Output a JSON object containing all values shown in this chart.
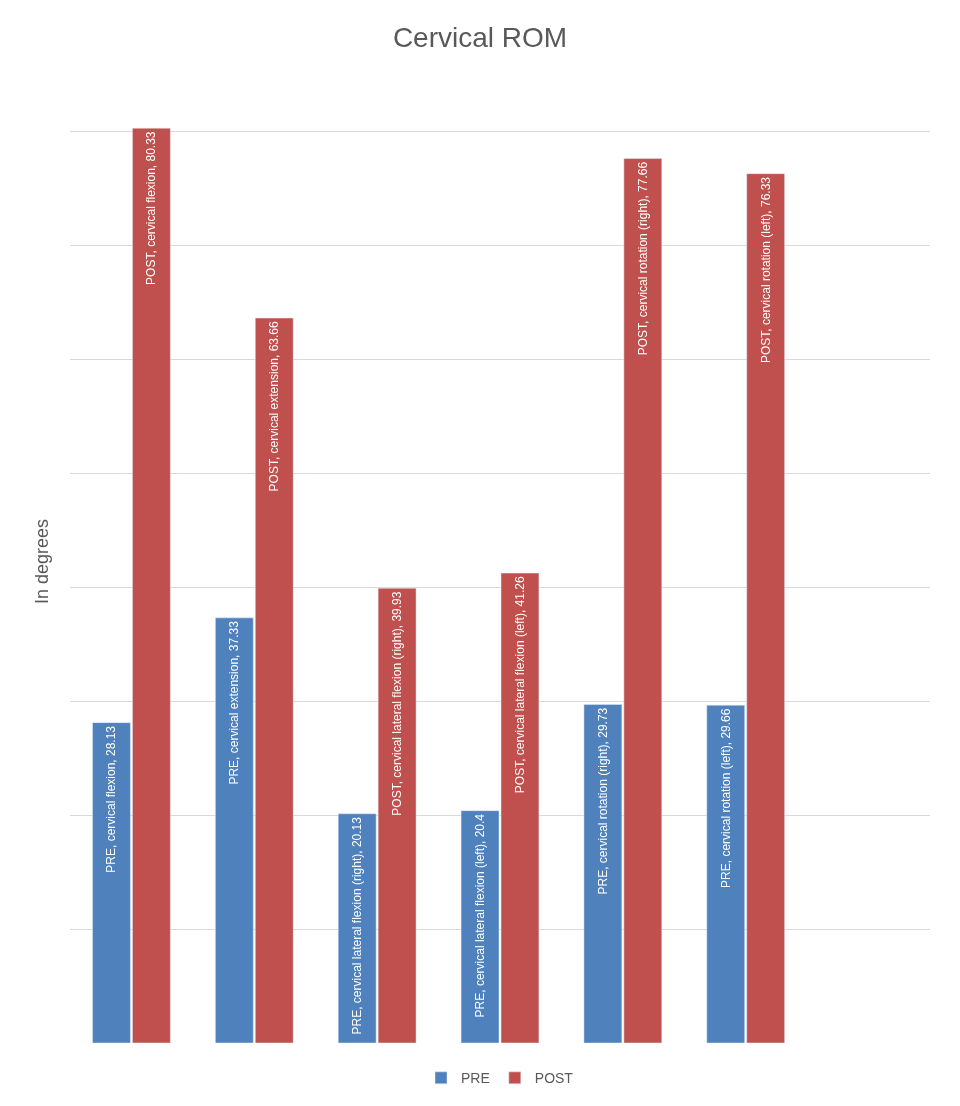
{
  "chart_data": {
    "type": "bar",
    "title": "Cervical ROM",
    "ylabel": "In degrees",
    "categories": [
      null,
      null,
      null,
      null,
      null,
      null
    ],
    "series": [
      {
        "name": "PRE",
        "color": "#4f81bd",
        "values": [
          28.13,
          37.33,
          20.13,
          20.4,
          29.73,
          29.66
        ],
        "value_labels": [
          "PRE, cervical flexion, 28.13",
          "PRE, cervical extension, 37.33",
          "PRE, cervical lateral flexion (right), 20.13",
          "PRE, cervical lateral flexion (left), 20.4",
          "PRE, cervical rotation (right), 29.73",
          "PRE, cervical rotation (left), 29.66"
        ]
      },
      {
        "name": "POST",
        "color": "#c0504d",
        "values": [
          80.33,
          63.66,
          39.93,
          41.26,
          77.66,
          76.33
        ],
        "value_labels": [
          "POST, cervical flexion, 80.33",
          "POST, cervical extension, 63.66",
          "POST, cervical lateral flexion (right), 39.93",
          "POST, cervical lateral flexion (left), 41.26",
          "POST, cervical rotation (right), 77.66",
          "POST, cervical rotation (left), 76.33"
        ]
      }
    ],
    "grid": "y",
    "legend": "bottom",
    "tick_labels": false
  }
}
